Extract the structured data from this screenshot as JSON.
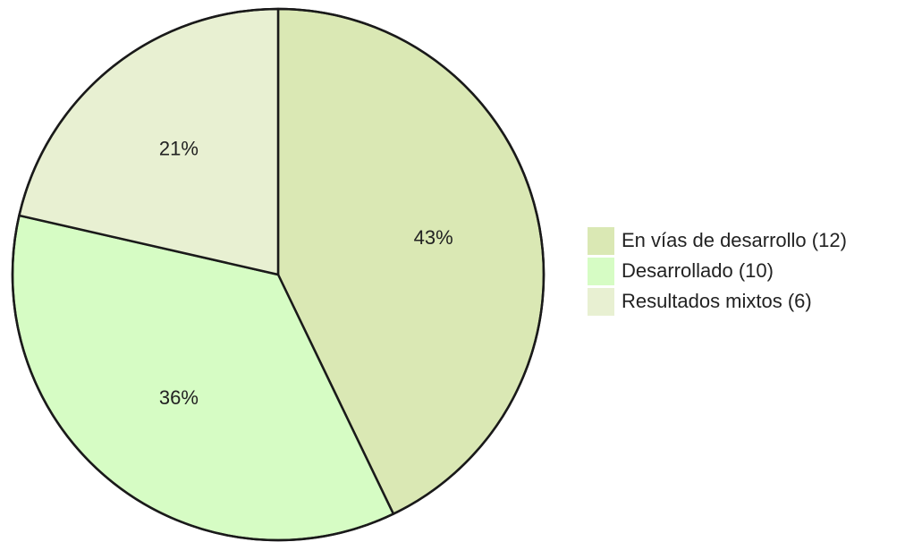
{
  "chart_data": {
    "type": "pie",
    "slices": [
      {
        "label": "En vías de desarrollo (12)",
        "value": 12,
        "percent_label": "43%",
        "color": "#dae8b4"
      },
      {
        "label": "Desarrollado (10)",
        "value": 10,
        "percent_label": "36%",
        "color": "#d6fcc4"
      },
      {
        "label": "Resultados mixtos (6)",
        "value": 6,
        "percent_label": "21%",
        "color": "#e8f0d2"
      }
    ],
    "legend_position": "right",
    "start_direction": "top, clockwise",
    "border_color": "#1a1a1a"
  }
}
